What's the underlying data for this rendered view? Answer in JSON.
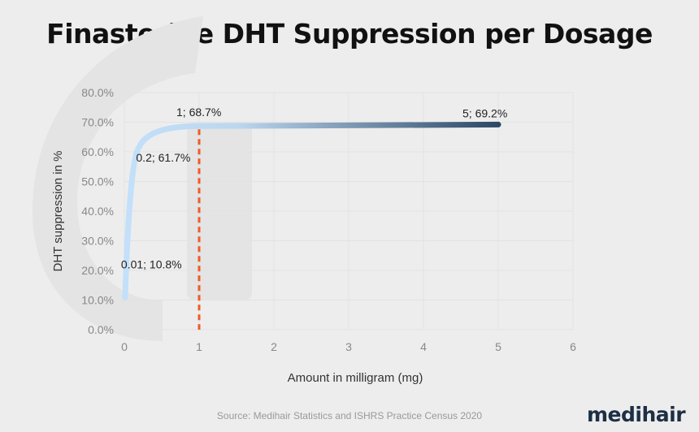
{
  "title": "Finasteride DHT Suppression per Dosage",
  "source": "Source: Medihair Statistics and ISHRS Practice Census 2020",
  "logo": "medihair",
  "colors": {
    "line_start": "#c3e0fa",
    "line_end": "#2c4766",
    "reference_line": "#f05a28",
    "grid": "#e2e2e2"
  },
  "chart_data": {
    "type": "line",
    "title": "Finasteride DHT Suppression per Dosage",
    "xlabel": "Amount in milligram (mg)",
    "ylabel": "DHT suppression in %",
    "xlim": [
      0,
      6
    ],
    "ylim": [
      0,
      80
    ],
    "xticks": [
      "0",
      "1",
      "2",
      "3",
      "4",
      "5",
      "6"
    ],
    "yticks": [
      "0.0%",
      "10.0%",
      "20.0%",
      "30.0%",
      "40.0%",
      "50.0%",
      "60.0%",
      "70.0%",
      "80.0%"
    ],
    "grid": true,
    "series": [
      {
        "name": "DHT suppression",
        "x": [
          0.01,
          0.2,
          1,
          5
        ],
        "y": [
          10.8,
          61.7,
          68.7,
          69.2
        ]
      }
    ],
    "data_labels": [
      "0.01; 10.8%",
      "0.2; 61.7%",
      "1; 68.7%",
      "5; 69.2%"
    ],
    "reference_line": {
      "x": 1,
      "style": "dashed"
    }
  }
}
